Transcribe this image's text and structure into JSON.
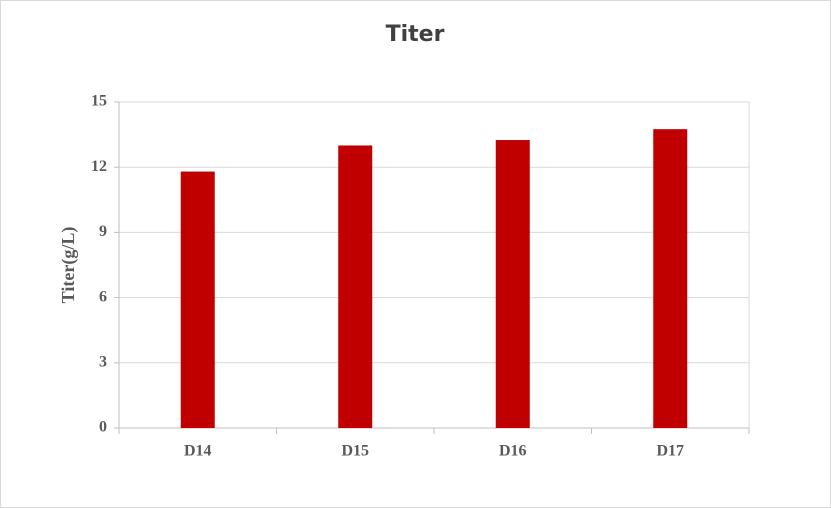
{
  "chart_data": {
    "type": "bar",
    "title": "Titer",
    "y_label": "Titer(g/L)",
    "categories": [
      "D14",
      "D15",
      "D16",
      "D17"
    ],
    "values": [
      11.8,
      13.0,
      13.25,
      13.75
    ],
    "color": "#c00000",
    "ylim": [
      0,
      15
    ],
    "yticks": [
      0,
      3,
      6,
      9,
      12,
      15
    ],
    "grid": true
  }
}
